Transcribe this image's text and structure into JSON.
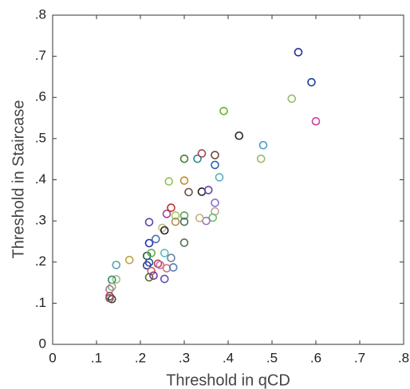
{
  "chart_data": {
    "type": "scatter",
    "x_label": "Threshold in qCD",
    "y_label": "Threshold in Staircase",
    "x": [
      0.56,
      0.59,
      0.6,
      0.545,
      0.39,
      0.425,
      0.48,
      0.475,
      0.3,
      0.33,
      0.34,
      0.37,
      0.37,
      0.38,
      0.265,
      0.3,
      0.31,
      0.34,
      0.355,
      0.37,
      0.37,
      0.365,
      0.35,
      0.335,
      0.22,
      0.26,
      0.27,
      0.28,
      0.3,
      0.28,
      0.3,
      0.25,
      0.255,
      0.3,
      0.22,
      0.235,
      0.215,
      0.225,
      0.255,
      0.27,
      0.22,
      0.215,
      0.24,
      0.245,
      0.26,
      0.275,
      0.225,
      0.23,
      0.22,
      0.255,
      0.175,
      0.145,
      0.145,
      0.135,
      0.135,
      0.13,
      0.13,
      0.135,
      0.13
    ],
    "values": [
      0.71,
      0.637,
      0.542,
      0.597,
      0.567,
      0.507,
      0.484,
      0.451,
      0.451,
      0.451,
      0.464,
      0.46,
      0.436,
      0.406,
      0.396,
      0.398,
      0.37,
      0.371,
      0.375,
      0.344,
      0.323,
      0.308,
      0.3,
      0.307,
      0.297,
      0.317,
      0.332,
      0.313,
      0.313,
      0.298,
      0.298,
      0.283,
      0.277,
      0.247,
      0.246,
      0.256,
      0.215,
      0.222,
      0.222,
      0.21,
      0.199,
      0.192,
      0.196,
      0.193,
      0.185,
      0.187,
      0.178,
      0.167,
      0.163,
      0.159,
      0.205,
      0.193,
      0.158,
      0.157,
      0.14,
      0.134,
      0.117,
      0.11,
      0.112
    ],
    "colors": [
      "#2a2a9a",
      "#1f3f8f",
      "#d040a0",
      "#9ab86a",
      "#6ab030",
      "#222222",
      "#4a9ac0",
      "#9ab86a",
      "#4a7a3a",
      "#2a8a8a",
      "#9a4a5a",
      "#6a4a3a",
      "#3060c0",
      "#5ab0c0",
      "#9ac060",
      "#c09020",
      "#6a5040",
      "#222222",
      "#6a40b0",
      "#8a70d0",
      "#c0a0a0",
      "#60c060",
      "#a070c0",
      "#c0b080",
      "#6040b0",
      "#9a4a9a",
      "#c03030",
      "#a0d060",
      "#60a060",
      "#b09050",
      "#4a7050",
      "#c0c080",
      "#222222",
      "#507050",
      "#2030b0",
      "#4a70b0",
      "#2a5a4a",
      "#60b040",
      "#5ac0c0",
      "#7080a0",
      "#2050c0",
      "#3a3a8a",
      "#c04040",
      "#c070b0",
      "#d07070",
      "#5080c0",
      "#c06060",
      "#8030a0",
      "#507030",
      "#6050b0",
      "#c0a040",
      "#5aa0b0",
      "#a0c080",
      "#3a8a6a",
      "#70c070",
      "#c070a0",
      "#b03060",
      "#404040",
      "#806050"
    ],
    "xlim": [
      0,
      0.8
    ],
    "ylim": [
      0,
      0.8
    ],
    "xticks": [
      0,
      {
        "value": 0.1,
        "label": ".1"
      },
      {
        "value": 0.2,
        "label": ".2"
      },
      {
        "value": 0.3,
        "label": ".3"
      },
      {
        "value": 0.4,
        "label": ".4"
      },
      {
        "value": 0.5,
        "label": ".5"
      },
      {
        "value": 0.6,
        "label": ".6"
      },
      {
        "value": 0.7,
        "label": ".7"
      },
      {
        "value": 0.8,
        "label": ".8"
      }
    ],
    "yticks": [
      0,
      {
        "value": 0.1,
        "label": ".1"
      },
      {
        "value": 0.2,
        "label": ".2"
      },
      {
        "value": 0.3,
        "label": ".3"
      },
      {
        "value": 0.4,
        "label": ".4"
      },
      {
        "value": 0.5,
        "label": ".5"
      },
      {
        "value": 0.6,
        "label": ".6"
      },
      {
        "value": 0.7,
        "label": ".7"
      },
      {
        "value": 0.8,
        "label": ".8"
      }
    ],
    "grid": false
  }
}
